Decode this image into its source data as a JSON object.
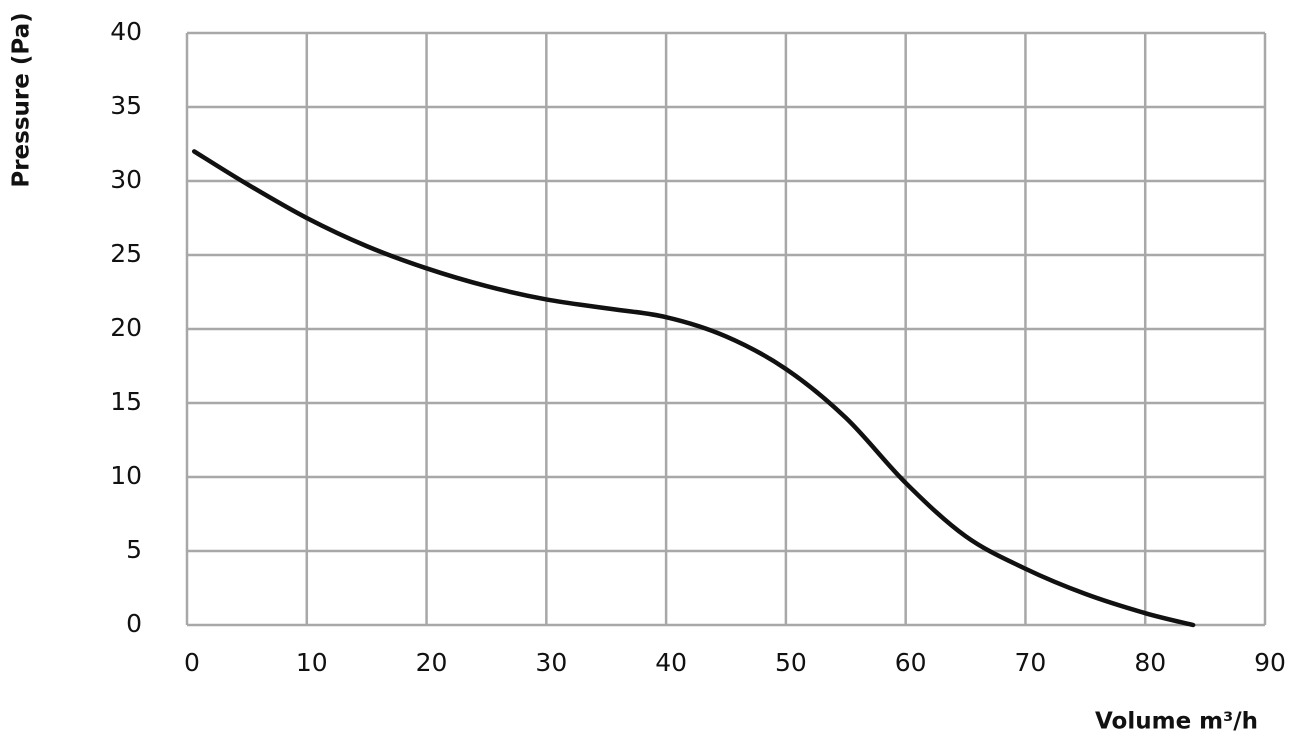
{
  "chart_data": {
    "type": "line",
    "x_label": "Volume m³/h",
    "y_label": "Pressure (Pa)",
    "series": [
      {
        "color": "#111111",
        "x": [
          0.6,
          5,
          10,
          15,
          20,
          25,
          30,
          35,
          40,
          45,
          50,
          55,
          60,
          65,
          70,
          75,
          80,
          84
        ],
        "values": [
          32,
          29.8,
          27.5,
          25.6,
          24.1,
          22.9,
          22,
          21.4,
          20.8,
          19.5,
          17.3,
          14,
          9.6,
          6,
          3.8,
          2.1,
          0.8,
          0
        ]
      }
    ],
    "xlim": [
      0,
      90
    ],
    "xticks": [
      0,
      10,
      20,
      30,
      40,
      50,
      60,
      70,
      80,
      90
    ],
    "ylim": [
      0,
      40
    ],
    "yticks": [
      0,
      5,
      10,
      15,
      20,
      25,
      30,
      35,
      40
    ],
    "grid": true,
    "grid_color": "#a8a8a8"
  }
}
